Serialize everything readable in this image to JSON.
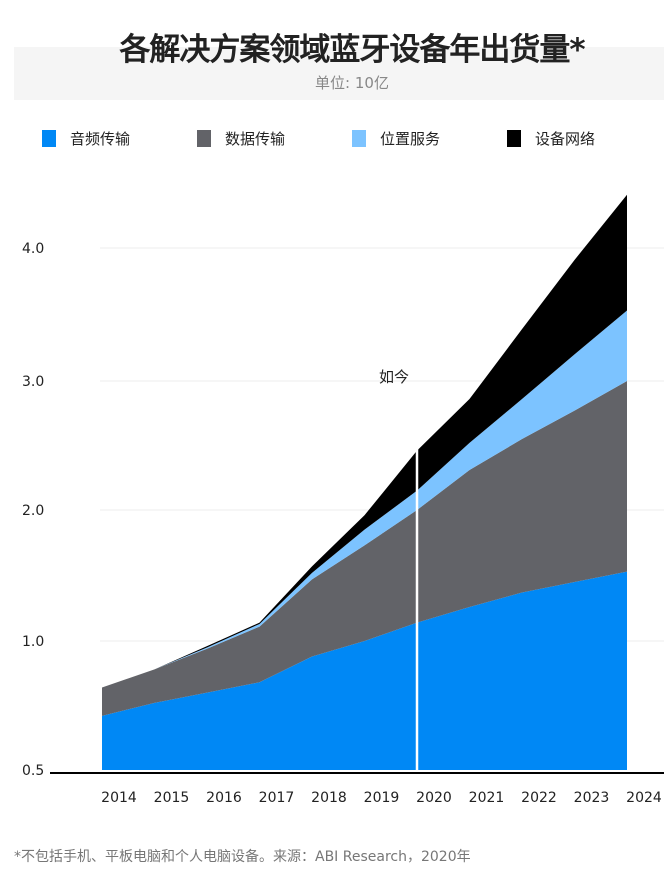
{
  "chart_data": {
    "type": "area",
    "stacked": true,
    "title": "各解决方案领域蓝牙设备年出货量*",
    "subtitle": "单位: 10亿",
    "x": [
      "2014",
      "2015",
      "2016",
      "2017",
      "2018",
      "2019",
      "2020",
      "2021",
      "2022",
      "2023",
      "2024"
    ],
    "y_ticks": [
      0.5,
      1.0,
      2.0,
      3.0,
      4.0
    ],
    "y_tick_labels": [
      "0.5",
      "1.0",
      "2.0",
      "3.0",
      "4.0"
    ],
    "grid": true,
    "legend_position": "top",
    "annotation": {
      "x": "2020",
      "label": "如今"
    },
    "series": [
      {
        "name": "音频传输",
        "color": "#0088f5",
        "values": [
          0.71,
          0.76,
          0.8,
          0.84,
          0.94,
          1.0,
          1.14,
          1.26,
          1.37,
          1.45,
          1.53
        ]
      },
      {
        "name": "数据传输",
        "color": "#626368",
        "values": [
          0.11,
          0.13,
          0.17,
          0.27,
          0.53,
          0.73,
          0.86,
          1.05,
          1.18,
          1.32,
          1.47
        ]
      },
      {
        "name": "位置服务",
        "color": "#7cc3ff",
        "values": [
          0,
          0,
          0.005,
          0.02,
          0.05,
          0.12,
          0.15,
          0.21,
          0.31,
          0.43,
          0.53
        ]
      },
      {
        "name": "设备网络",
        "color": "#000000",
        "values": [
          0,
          0,
          0.005,
          0.01,
          0.05,
          0.11,
          0.31,
          0.34,
          0.53,
          0.71,
          0.87
        ]
      }
    ]
  },
  "footnote": "*不包括手机、平板电脑和个人电脑设备。来源：ABI Research，2020年"
}
